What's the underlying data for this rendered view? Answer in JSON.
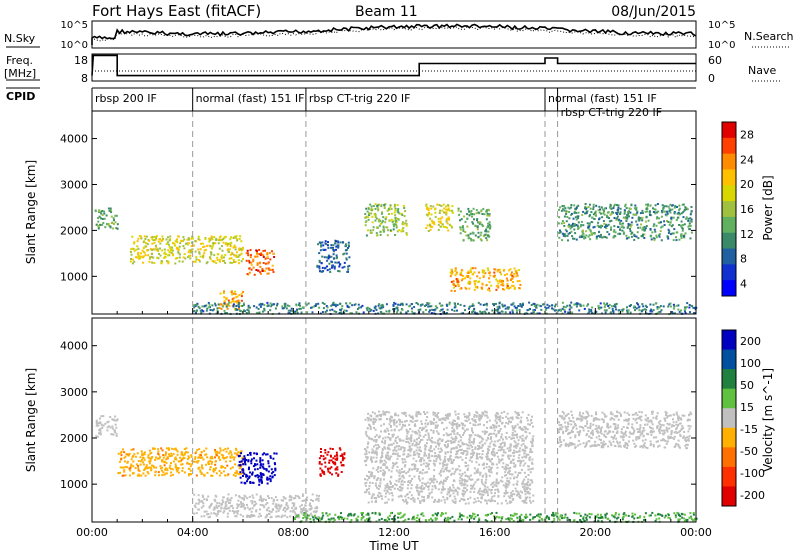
{
  "header": {
    "station": "Fort Hays East (fitACF)",
    "beam": "Beam 11",
    "date": "08/Jun/2015"
  },
  "control_panel": {
    "nsky_label": "N.Sky",
    "nsearch_label": "N.Search",
    "freq_label_1": "Freq.",
    "freq_label_2": "[MHz]",
    "nave_label": "Nave",
    "cpid_label": "CPID",
    "noise_ticks_left": [
      "10^5",
      "10^0"
    ],
    "noise_ticks_right": [
      "10^5",
      "10^0"
    ],
    "freq_ticks": [
      "18",
      "8"
    ],
    "nave_ticks": [
      "60",
      "0"
    ]
  },
  "cpid_segments": [
    {
      "label": "rbsp 200 IF",
      "start_h": 0.0
    },
    {
      "label": "normal (fast) 151 IF",
      "start_h": 4.0
    },
    {
      "label": "rbsp CT-trig 220 IF",
      "start_h": 8.5
    },
    {
      "label": "normal (fast) 151 IF",
      "start_h": 18.0
    },
    {
      "label": "rbsp CT-trig 220 IF",
      "start_h": 18.5
    }
  ],
  "frequency_trace_mhz": [
    {
      "h": 0.0,
      "f": 10
    },
    {
      "h": 0.05,
      "f": 17.5
    },
    {
      "h": 1.0,
      "f": 17.5
    },
    {
      "h": 1.0,
      "f": 10
    },
    {
      "h": 13.0,
      "f": 10
    },
    {
      "h": 13.0,
      "f": 14.5
    },
    {
      "h": 18.0,
      "f": 14.5
    },
    {
      "h": 18.0,
      "f": 16.5
    },
    {
      "h": 18.5,
      "f": 16.5
    },
    {
      "h": 18.5,
      "f": 14.5
    },
    {
      "h": 24.0,
      "f": 14.5
    }
  ],
  "chart_data": [
    {
      "type": "heatmap",
      "panel": "power",
      "ylabel": "Slant Range [km]",
      "xlabel": "",
      "ylim": [
        180,
        4600
      ],
      "yticks": [
        1000,
        2000,
        3000,
        4000
      ],
      "colorbar_label": "Power [dB]",
      "colorbar_ticks": [
        "28",
        "24",
        "20",
        "16",
        "12",
        "8",
        "4"
      ],
      "colorbar_colors": [
        "#e00000",
        "#ff4000",
        "#ff8c00",
        "#ffc000",
        "#d8d800",
        "#a0c040",
        "#60b060",
        "#3a8a6a",
        "#2060a0",
        "#1030d0",
        "#0000ff"
      ],
      "echo_regions": [
        {
          "h0": 0.1,
          "h1": 1.0,
          "r0": 2050,
          "r1": 2500,
          "level": 12
        },
        {
          "h0": 1.5,
          "h1": 6.0,
          "r0": 1300,
          "r1": 1900,
          "level": 18
        },
        {
          "h0": 6.1,
          "h1": 7.2,
          "r0": 1050,
          "r1": 1600,
          "level": 26
        },
        {
          "h0": 5.0,
          "h1": 6.0,
          "r0": 300,
          "r1": 700,
          "level": 22
        },
        {
          "h0": 8.9,
          "h1": 10.2,
          "r0": 1100,
          "r1": 1800,
          "level": 6
        },
        {
          "h0": 10.8,
          "h1": 12.5,
          "r0": 1900,
          "r1": 2600,
          "level": 14
        },
        {
          "h0": 13.2,
          "h1": 14.3,
          "r0": 2000,
          "r1": 2600,
          "level": 18
        },
        {
          "h0": 14.5,
          "h1": 15.8,
          "r0": 1800,
          "r1": 2500,
          "level": 12
        },
        {
          "h0": 14.2,
          "h1": 17.0,
          "r0": 700,
          "r1": 1200,
          "level": 22
        },
        {
          "h0": 18.5,
          "h1": 23.8,
          "r0": 1800,
          "r1": 2600,
          "level": 10
        },
        {
          "h0": 4.0,
          "h1": 24.0,
          "r0": 200,
          "r1": 450,
          "level": 8
        }
      ]
    },
    {
      "type": "heatmap",
      "panel": "velocity",
      "ylabel": "Slant Range [km]",
      "xlabel": "Time UT",
      "ylim": [
        180,
        4600
      ],
      "yticks": [
        1000,
        2000,
        3000,
        4000
      ],
      "xticks": [
        "00:00",
        "04:00",
        "08:00",
        "12:00",
        "16:00",
        "20:00",
        "00:00"
      ],
      "colorbar_label": "Velocity [m s^-1]",
      "colorbar_ticks": [
        "200",
        "100",
        "50",
        "15",
        "-15",
        "-50",
        "-100",
        "-200"
      ],
      "colorbar_colors": [
        "#0000c0",
        "#0050a0",
        "#208040",
        "#60c040",
        "#c0c0c0",
        "#ffb000",
        "#ff7000",
        "#ff3000",
        "#e00000"
      ],
      "echo_regions": [
        {
          "h0": 0.1,
          "h1": 1.0,
          "r0": 2050,
          "r1": 2500,
          "v": 0
        },
        {
          "h0": 1.0,
          "h1": 6.0,
          "r0": 1200,
          "r1": 1800,
          "v": -30
        },
        {
          "h0": 5.8,
          "h1": 7.3,
          "r0": 1000,
          "r1": 1700,
          "v": 200
        },
        {
          "h0": 9.0,
          "h1": 10.0,
          "r0": 1200,
          "r1": 1800,
          "v": -180
        },
        {
          "h0": 10.8,
          "h1": 17.5,
          "r0": 600,
          "r1": 2600,
          "v": 0
        },
        {
          "h0": 18.5,
          "h1": 23.8,
          "r0": 1800,
          "r1": 2600,
          "v": 0
        },
        {
          "h0": 4.0,
          "h1": 9.0,
          "r0": 300,
          "r1": 800,
          "v": 0
        },
        {
          "h0": 8.0,
          "h1": 24.0,
          "r0": 200,
          "r1": 400,
          "v": 30
        }
      ]
    }
  ]
}
